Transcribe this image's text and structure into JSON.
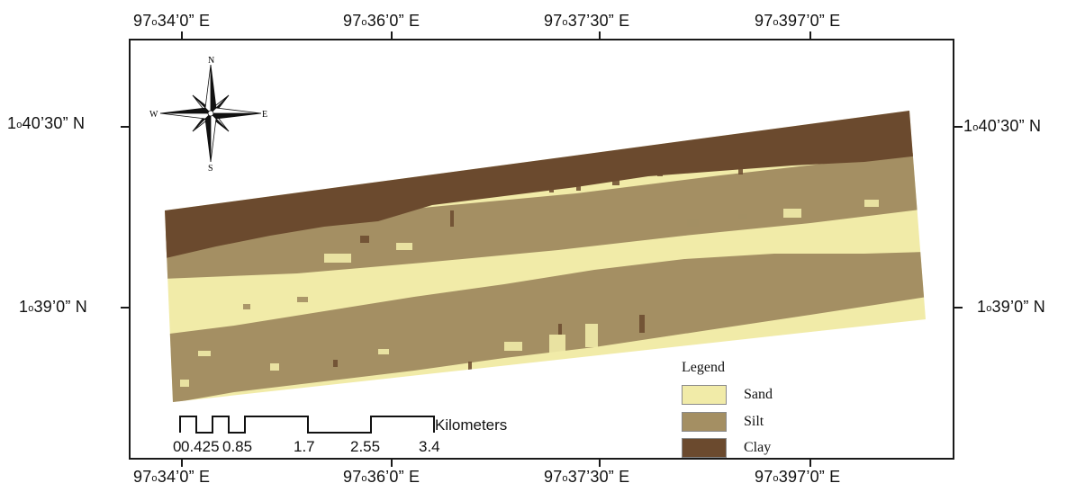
{
  "map": {
    "coords_top": [
      "97",
      "34’0” E",
      "97",
      "36’0” E",
      "97",
      "37’30” E",
      "97",
      "397’0” E"
    ],
    "coords_bottom": [
      "97",
      "34’0” E",
      "97",
      "36’0” E",
      "97",
      "37’30” E",
      "97",
      "397’0” E"
    ],
    "coords_left": [
      "1",
      "40’30” N",
      "1",
      "39’0” N"
    ],
    "coords_right": [
      "1",
      "40’30” N",
      "1",
      "39’0” N"
    ],
    "degree_sign": "o"
  },
  "compass": {
    "n": "N",
    "s": "S",
    "e": "E",
    "w": "W"
  },
  "legend": {
    "title": "Legend",
    "items": [
      {
        "label": "Sand",
        "color": "#f1eba8"
      },
      {
        "label": "Silt",
        "color": "#a48f63"
      },
      {
        "label": "Clay",
        "color": "#6b4a2e"
      }
    ]
  },
  "scale_bar": {
    "unit": "Kilometers",
    "ticks": [
      "0",
      "0.425",
      "0.85",
      "1.7",
      "2.55",
      "3.4"
    ]
  }
}
